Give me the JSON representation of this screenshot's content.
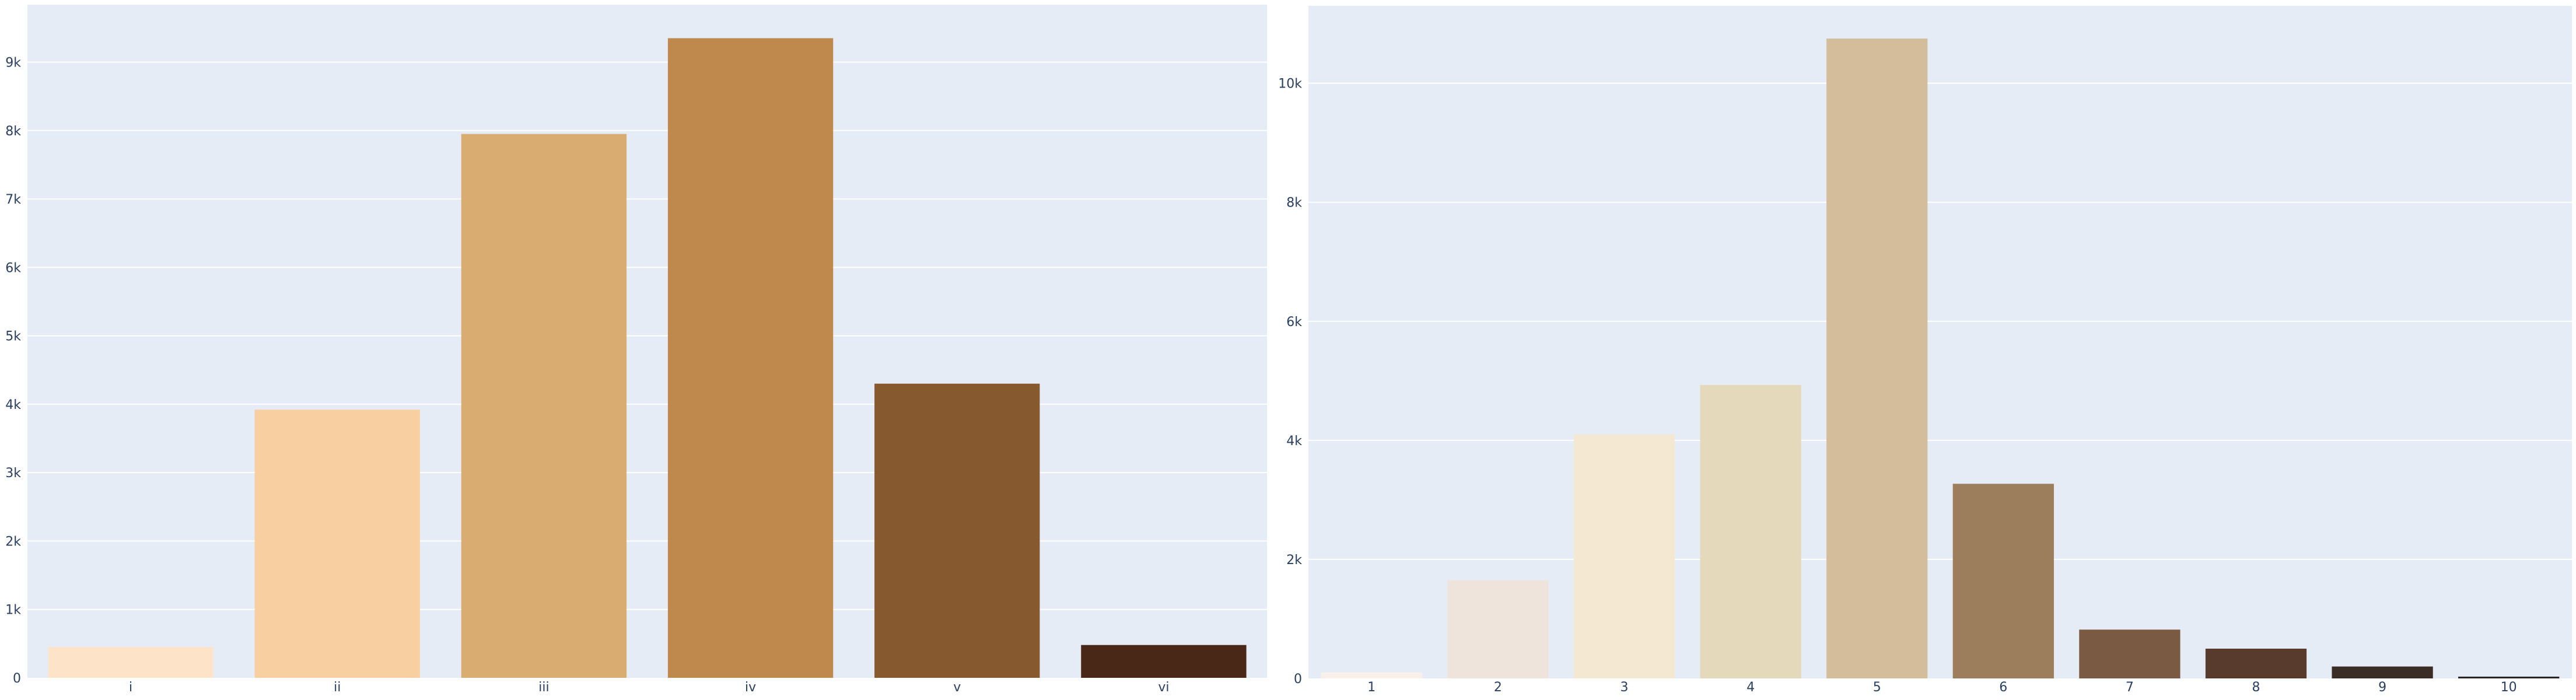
{
  "chart_data": [
    {
      "type": "bar",
      "categories": [
        "i",
        "ii",
        "iii",
        "iv",
        "v",
        "vi"
      ],
      "values": [
        450,
        3920,
        7950,
        9350,
        4300,
        480
      ],
      "colors": [
        "#fde3c8",
        "#f7cfa0",
        "#d9ad72",
        "#bf884d",
        "#87592f",
        "#4a2817"
      ],
      "yticks": [
        0,
        1000,
        2000,
        3000,
        4000,
        5000,
        6000,
        7000,
        8000,
        9000
      ],
      "ytick_labels": [
        "0",
        "1k",
        "2k",
        "3k",
        "4k",
        "5k",
        "6k",
        "7k",
        "8k",
        "9k"
      ],
      "ylim": [
        0,
        9840
      ],
      "grid": true,
      "title": "",
      "xlabel": "",
      "ylabel": ""
    },
    {
      "type": "bar",
      "categories": [
        "1",
        "2",
        "3",
        "4",
        "5",
        "6",
        "7",
        "8",
        "9",
        "10"
      ],
      "values": [
        100,
        1650,
        4100,
        4930,
        10750,
        3270,
        820,
        500,
        200,
        30
      ],
      "colors": [
        "#f9f0e9",
        "#efe4dc",
        "#f5e8d2",
        "#e5d9bb",
        "#d4bd9a",
        "#9c7e5c",
        "#7b5a43",
        "#593b2e",
        "#3a2d26",
        "#2a2522"
      ],
      "yticks": [
        0,
        2000,
        4000,
        6000,
        8000,
        10000
      ],
      "ytick_labels": [
        "0",
        "2k",
        "4k",
        "6k",
        "8k",
        "10k"
      ],
      "ylim": [
        0,
        11300
      ],
      "grid": true,
      "title": "",
      "xlabel": "",
      "ylabel": ""
    }
  ],
  "style": {
    "plot_background": "#e5ecf6",
    "grid_color": "#ffffff",
    "axis_text_color": "#2a3f5f"
  }
}
